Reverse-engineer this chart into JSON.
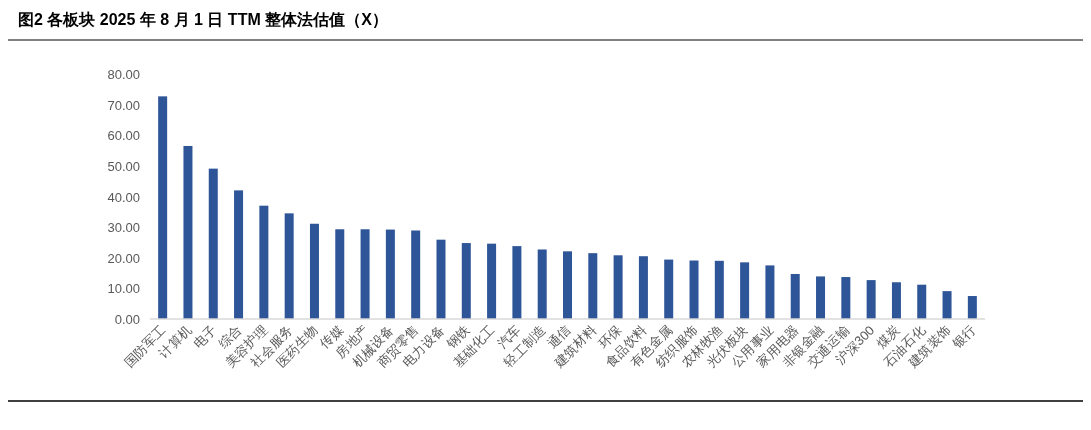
{
  "chart_data": {
    "type": "bar",
    "title": "图2  各板块 2025 年 8 月 1 日 TTM 整体法估值（X）",
    "categories": [
      "国防军工",
      "计算机",
      "电子",
      "综合",
      "美容护理",
      "社会服务",
      "医药生物",
      "传媒",
      "房地产",
      "机械设备",
      "商贸零售",
      "电力设备",
      "钢铁",
      "基础化工",
      "汽车",
      "轻工制造",
      "通信",
      "建筑材料",
      "环保",
      "食品饮料",
      "有色金属",
      "纺织服饰",
      "农林牧渔",
      "光伏板块",
      "公用事业",
      "家用电器",
      "非银金融",
      "交通运输",
      "沪深300",
      "煤炭",
      "石油石化",
      "建筑装饰",
      "银行"
    ],
    "values": [
      72.7,
      56.5,
      49.1,
      42.0,
      37.0,
      34.5,
      31.1,
      29.3,
      29.3,
      29.2,
      28.9,
      25.9,
      24.8,
      24.6,
      23.8,
      22.7,
      22.1,
      21.5,
      20.8,
      20.5,
      19.4,
      19.1,
      19.0,
      18.5,
      17.5,
      14.7,
      13.9,
      13.7,
      12.7,
      12.0,
      11.2,
      9.1,
      7.5
    ],
    "color": "#2e5597",
    "ylim": [
      0,
      80
    ],
    "yticks": [
      {
        "value": 0,
        "label": "0.00"
      },
      {
        "value": 10,
        "label": "10.00"
      },
      {
        "value": 20,
        "label": "20.00"
      },
      {
        "value": 30,
        "label": "30.00"
      },
      {
        "value": 40,
        "label": "40.00"
      },
      {
        "value": 50,
        "label": "50.00"
      },
      {
        "value": 60,
        "label": "60.00"
      },
      {
        "value": 70,
        "label": "70.00"
      },
      {
        "value": 80,
        "label": "80.00"
      }
    ],
    "grid": false
  }
}
